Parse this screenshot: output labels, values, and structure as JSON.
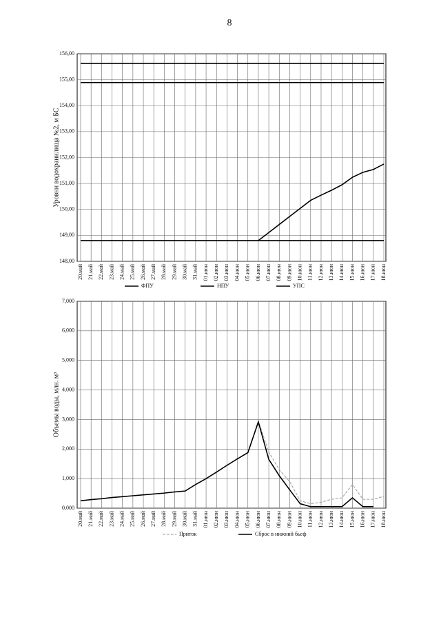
{
  "page_number": "8",
  "chart_data": [
    {
      "type": "line",
      "y_label": "Уровни водохранилища №2, м БС",
      "categories": [
        "20.май",
        "21.май",
        "22.май",
        "23.май",
        "24.май",
        "25.май",
        "26.май",
        "27.май",
        "28.май",
        "29.май",
        "30.май",
        "31.май",
        "01.июн",
        "02.июн",
        "03.июн",
        "04.июн",
        "05.июн",
        "06.июн",
        "07.июн",
        "08.июн",
        "09.июн",
        "10.июн",
        "11.июн",
        "12.июн",
        "13.июн",
        "14.июн",
        "15.июн",
        "16.июн",
        "17.июн",
        "18.июн"
      ],
      "ylim": [
        148,
        156
      ],
      "yticks": [
        {
          "value": 148,
          "label": "148,00"
        },
        {
          "value": 149,
          "label": "149,00"
        },
        {
          "value": 150,
          "label": "150,00"
        },
        {
          "value": 151,
          "label": "151,00"
        },
        {
          "value": 152,
          "label": "152,00"
        },
        {
          "value": 153,
          "label": "153,00"
        },
        {
          "value": 154,
          "label": "154,00"
        },
        {
          "value": 155,
          "label": "155,00"
        },
        {
          "value": 156,
          "label": "156,00"
        }
      ],
      "grid": true,
      "series": [
        {
          "name": "ФПУ",
          "color": "#000000",
          "values": [
            155.63,
            155.63,
            155.63,
            155.63,
            155.63,
            155.63,
            155.63,
            155.63,
            155.63,
            155.63,
            155.63,
            155.63,
            155.63,
            155.63,
            155.63,
            155.63,
            155.63,
            155.63,
            155.63,
            155.63,
            155.63,
            155.63,
            155.63,
            155.63,
            155.63,
            155.63,
            155.63,
            155.63,
            155.63,
            155.63
          ]
        },
        {
          "name": "НПУ",
          "color": "#000000",
          "values": [
            154.89,
            154.89,
            154.89,
            154.89,
            154.89,
            154.89,
            154.89,
            154.89,
            154.89,
            154.89,
            154.89,
            154.89,
            154.89,
            154.89,
            154.89,
            154.89,
            154.89,
            154.89,
            154.89,
            154.89,
            154.89,
            154.89,
            154.89,
            154.89,
            154.89,
            154.89,
            154.89,
            154.89,
            154.89,
            154.89
          ]
        },
        {
          "name": "УПС",
          "color": "#000000",
          "values": [
            148.8,
            148.8,
            148.8,
            148.8,
            148.8,
            148.8,
            148.8,
            148.8,
            148.8,
            148.8,
            148.8,
            148.8,
            148.8,
            148.8,
            148.8,
            148.8,
            148.8,
            148.8,
            148.8,
            148.8,
            148.8,
            148.8,
            148.8,
            148.8,
            148.8,
            148.8,
            148.8,
            148.8,
            148.8,
            148.8
          ]
        },
        {
          "color": "#000000",
          "values": [
            null,
            null,
            null,
            null,
            null,
            null,
            null,
            null,
            null,
            null,
            null,
            null,
            null,
            null,
            null,
            null,
            null,
            148.8,
            149.11,
            149.42,
            149.73,
            150.04,
            150.35,
            150.55,
            150.74,
            150.95,
            151.24,
            151.43,
            151.54,
            151.75
          ]
        }
      ]
    },
    {
      "type": "line",
      "y_label": "Объемы воды, млн. м³",
      "categories": [
        "20.май",
        "21.май",
        "22.май",
        "23.май",
        "24.май",
        "25.май",
        "26.май",
        "27.май",
        "28.май",
        "29.май",
        "30.май",
        "31.май",
        "01.июн",
        "02.июн",
        "03.июн",
        "04.июн",
        "05.июн",
        "06.июн",
        "07.июн",
        "08.июн",
        "09.июн",
        "10.июн",
        "11.июн",
        "12.июн",
        "13.июн",
        "14.июн",
        "15.июн",
        "16.июн",
        "17.июн",
        "18.июн"
      ],
      "ylim": [
        0,
        7
      ],
      "yticks": [
        {
          "value": 0,
          "label": "0,000"
        },
        {
          "value": 1,
          "label": "1,000"
        },
        {
          "value": 2,
          "label": "2,000"
        },
        {
          "value": 3,
          "label": "3,000"
        },
        {
          "value": 4,
          "label": "4,000"
        },
        {
          "value": 5,
          "label": "5,000"
        },
        {
          "value": 6,
          "label": "6,000"
        },
        {
          "value": 7,
          "label": "7,000"
        }
      ],
      "grid": true,
      "series": [
        {
          "name": "Приток",
          "color": "#999999",
          "dashed": true,
          "values": [
            0.25,
            0.29,
            0.32,
            0.36,
            0.39,
            0.42,
            0.45,
            0.48,
            0.51,
            0.55,
            0.58,
            0.8,
            1.0,
            1.22,
            1.45,
            1.67,
            1.88,
            2.95,
            1.9,
            1.3,
            0.9,
            0.25,
            0.15,
            0.2,
            0.3,
            0.35,
            0.8,
            0.3,
            0.3,
            0.4
          ]
        },
        {
          "name": "Сброс в нижний бьеф",
          "color": "#000000",
          "values": [
            0.25,
            0.29,
            0.32,
            0.36,
            0.39,
            0.42,
            0.45,
            0.48,
            0.51,
            0.55,
            0.58,
            0.8,
            1.0,
            1.22,
            1.45,
            1.67,
            1.88,
            2.92,
            1.65,
            1.1,
            0.62,
            0.15,
            0.05,
            0.05,
            0.05,
            0.05,
            0.35,
            0.05,
            0.05,
            null
          ]
        }
      ]
    }
  ]
}
